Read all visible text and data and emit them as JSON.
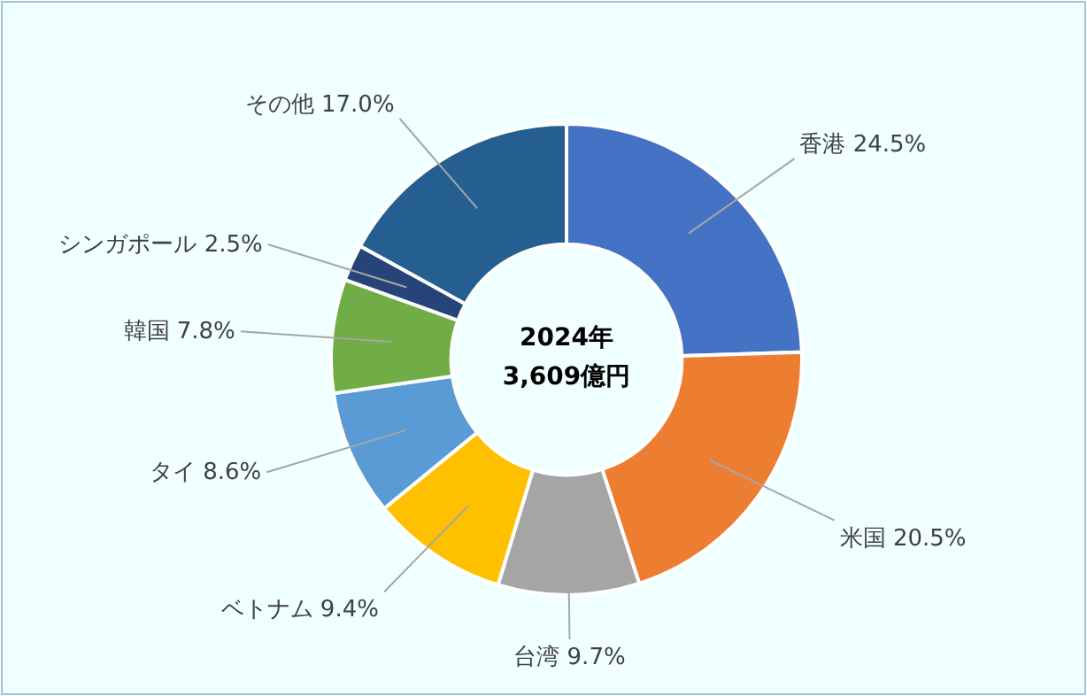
{
  "chart_data": {
    "type": "donut",
    "categories": [
      "香港",
      "米国",
      "台湾",
      "ベトナム",
      "タイ",
      "韓国",
      "シンガポール",
      "その他"
    ],
    "values": [
      24.5,
      20.5,
      9.7,
      9.4,
      8.6,
      7.8,
      2.5,
      17.0
    ],
    "colors": [
      "#4472c4",
      "#ed7d31",
      "#a5a5a5",
      "#ffc000",
      "#5b9bd5",
      "#70ad47",
      "#264478",
      "#255e91"
    ],
    "value_labels": [
      "24.5%",
      "20.5%",
      "9.7%",
      "9.4%",
      "8.6%",
      "7.8%",
      "2.5%",
      "17.0%"
    ],
    "annotations": [
      "2024年",
      "3,609億円"
    ],
    "legend": false
  }
}
